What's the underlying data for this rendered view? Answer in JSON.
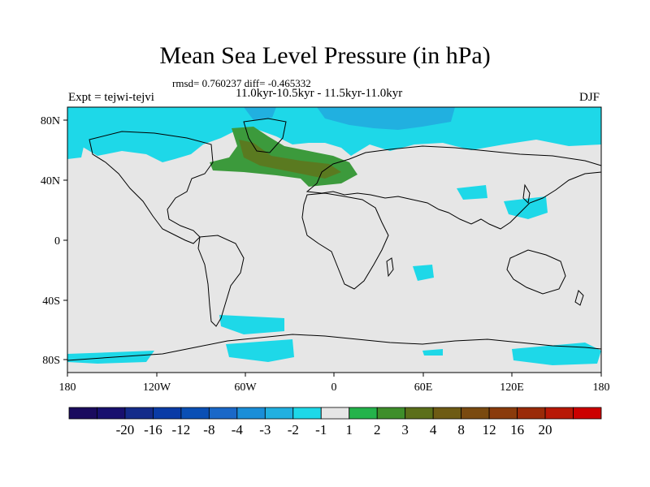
{
  "title": "Mean Sea Level Pressure (in hPa)",
  "stats": "rmsd= 0.760237 diff= -0.465332",
  "period": "11.0kyr-10.5kyr - 11.5kyr-11.0kyr",
  "experiment": "Expt = tejwi-tejvi",
  "season": "DJF",
  "lat_labels": [
    "80N",
    "40N",
    "0",
    "40S",
    "80S"
  ],
  "lon_labels": [
    "180",
    "120W",
    "60W",
    "0",
    "60E",
    "120E",
    "180"
  ],
  "colorbar": {
    "colors": [
      "#1a0b5e",
      "#18106e",
      "#142b8a",
      "#0a3ba6",
      "#0a4fb5",
      "#1a68c8",
      "#1a8ed8",
      "#21b0e0",
      "#1ed8e8",
      "#e6e6e6",
      "#24b34b",
      "#3e8e2a",
      "#5b6f1a",
      "#6e5b14",
      "#7a4a10",
      "#8a3b0c",
      "#9a2a08",
      "#b81806",
      "#cc0000"
    ],
    "labels": [
      "-20",
      "-16",
      "-12",
      "-8",
      "-4",
      "-3",
      "-2",
      "-1",
      "1",
      "2",
      "3",
      "4",
      "8",
      "12",
      "16",
      "20"
    ]
  },
  "colors": {
    "background_field": "#e6e6e6",
    "neg_light": "#1ed8e8",
    "neg_mid": "#21b0e0",
    "pos_light": "#3c9a3c",
    "pos_dark": "#5a7a20",
    "coast": "#000000"
  }
}
